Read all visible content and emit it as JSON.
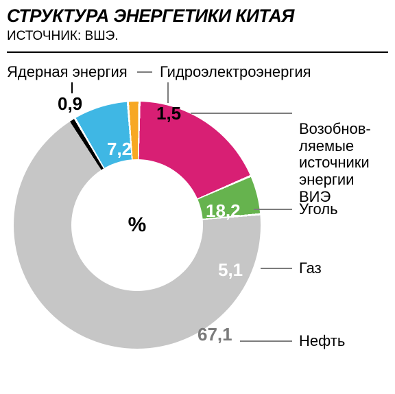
{
  "header": {
    "title": "СТРУКТУРА ЭНЕРГЕТИКИ КИТАЯ",
    "source": "ИСТОЧНИК: ВШЭ."
  },
  "chart": {
    "type": "donut",
    "center_label": "%",
    "center_fontsize": 30,
    "outer_diameter": 360,
    "inner_diameter": 192,
    "background_color": "#ffffff",
    "gap_color": "#ffffff",
    "gap_deg": 1.0,
    "value_fontsize": 26,
    "category_fontsize": 22,
    "tick_color": "#7c7c7c",
    "start_angle_deg": -33,
    "series": [
      {
        "id": "nuclear",
        "label": "Ядерная энергия",
        "value": 0.9,
        "display": "0,9",
        "color": "#000000"
      },
      {
        "id": "hydro",
        "label": "Гидроэлектроэнергия",
        "value": 7.2,
        "display": "7,2",
        "color": "#3fb7e4"
      },
      {
        "id": "ries_gap",
        "label": "",
        "value": 1.5,
        "display": "1,5",
        "color": "#f7a823"
      },
      {
        "id": "ries",
        "label": "Возобнов-\nляемые\nисточники\nэнергии ВИЭ",
        "value": 18.2,
        "display": "18,2",
        "color": "#d81f74"
      },
      {
        "id": "coal",
        "label": "Уголь",
        "value": 5.1,
        "display": "5,1",
        "color": "#66b34e"
      },
      {
        "id": "gas",
        "label": "Газ",
        "value": 67.1,
        "display": "67,1",
        "color": "#c6c6c6"
      },
      {
        "id": "oil",
        "label": "Нефть",
        "value": 0.0,
        "display": "",
        "color": "#c6c6c6"
      }
    ],
    "right_labels": [
      {
        "key": "ries",
        "text": "Возобнов-\nляемые\nисточники\nэнергии ВИЭ"
      },
      {
        "key": "coal",
        "text": "Уголь"
      },
      {
        "key": "gas",
        "text": "Газ"
      },
      {
        "key": "oil",
        "text": "Нефть"
      }
    ],
    "top_labels": [
      {
        "key": "nuclear",
        "text": "Ядерная энергия"
      },
      {
        "key": "hydro",
        "text": "Гидроэлектроэнергия"
      }
    ]
  }
}
